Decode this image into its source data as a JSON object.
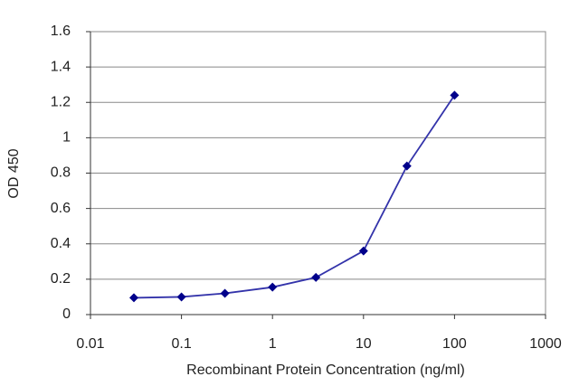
{
  "chart_data": {
    "type": "line",
    "x_label": "Recombinant Protein Concentration (ng/ml)",
    "y_label": "OD 450",
    "x": [
      0.03,
      0.1,
      0.3,
      1,
      3,
      10,
      30,
      100
    ],
    "series": [
      {
        "name": "OD",
        "color": "#3333aa",
        "marker_color": "#00008b",
        "values": [
          0.095,
          0.1,
          0.12,
          0.155,
          0.21,
          0.36,
          0.84,
          1.24
        ]
      }
    ],
    "xlim": [
      0.01,
      1000
    ],
    "xticks": [
      0.01,
      0.1,
      1,
      10,
      100,
      1000
    ],
    "xscale": "log",
    "ylim": [
      0,
      1.6
    ],
    "yticks": [
      0,
      0.2,
      0.4,
      0.6,
      0.8,
      1,
      1.2,
      1.4,
      1.6
    ],
    "grid": true
  }
}
